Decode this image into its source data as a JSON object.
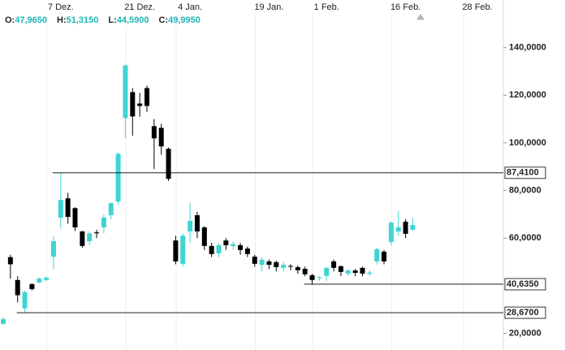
{
  "chart_data": {
    "type": "candlestick",
    "readout": [
      {
        "label": "O:",
        "value": "47,9650"
      },
      {
        "label": "H:",
        "value": "51,3150"
      },
      {
        "label": "L:",
        "value": "44,5900"
      },
      {
        "label": "C:",
        "value": "49,9950"
      }
    ],
    "categories": [
      null,
      null,
      null,
      null,
      null,
      null,
      null,
      null,
      "7 Dez.",
      null,
      null,
      null,
      null,
      null,
      null,
      null,
      null,
      null,
      null,
      "21 Dez.",
      null,
      null,
      null,
      null,
      null,
      null,
      "4 Jan.",
      null,
      null,
      null,
      null,
      null,
      null,
      null,
      null,
      null,
      null,
      "19 Jan.",
      null,
      null,
      null,
      null,
      null,
      null,
      null,
      "1 Feb.",
      null,
      null,
      null,
      null,
      null,
      null,
      null,
      null,
      null,
      null,
      "16 Feb.",
      null,
      null,
      null,
      null,
      null,
      null,
      null,
      null,
      null,
      "28 Feb.",
      null
    ],
    "open": [
      24,
      52,
      42.4,
      30.5,
      40.7,
      41.4,
      42.4,
      52.2,
      68.6,
      76.7,
      72.6,
      62.8,
      58.7,
      62.4,
      64.5,
      69.6,
      75.4,
      110.4,
      121.3,
      116.5,
      123,
      107,
      106.3,
      97.5,
      59,
      49.2,
      62.8,
      69.6,
      64.5,
      56.7,
      53.6,
      59,
      56.6,
      57,
      55.6,
      52.2,
      48.8,
      50.2,
      49.9,
      47.5,
      48.3,
      47.8,
      47.1,
      44.4,
      43.2,
      44.1,
      50.2,
      48.2,
      45.1,
      46.4,
      47.5,
      45,
      50.2,
      54.3,
      58.4,
      62.8,
      66.9,
      63.5,
      null,
      null,
      null,
      null,
      null,
      null,
      null,
      null,
      null,
      null
    ],
    "high": [
      27,
      53,
      44,
      38,
      41,
      43.5,
      44,
      61,
      87.41,
      79,
      73,
      63,
      63,
      63.5,
      70,
      75,
      96,
      133,
      123,
      121,
      124,
      110,
      108,
      98,
      61,
      62,
      74.7,
      71,
      65,
      58,
      58,
      60,
      58.5,
      58,
      56.5,
      53,
      52,
      51,
      50.5,
      50,
      49,
      48.5,
      48,
      45,
      44,
      48,
      51,
      48.5,
      47,
      47,
      48,
      46.5,
      56,
      55,
      67,
      71.5,
      68,
      68.5,
      null,
      null,
      null,
      null,
      null,
      null,
      null,
      null,
      null,
      null
    ],
    "low": [
      23.5,
      43,
      33,
      28.67,
      38,
      41,
      42,
      47,
      64,
      66,
      63,
      56,
      57,
      60,
      62,
      68,
      74,
      102,
      103,
      111,
      113,
      89,
      95,
      84,
      49,
      48,
      58,
      60,
      55,
      52,
      52,
      55,
      55,
      53,
      52,
      48,
      46,
      47,
      46,
      46,
      46.5,
      45,
      44,
      40.635,
      42,
      42,
      46,
      44,
      44,
      44,
      44,
      44,
      49,
      49,
      57,
      61,
      60,
      63,
      null,
      null,
      null,
      null,
      null,
      null,
      null,
      null,
      null,
      null
    ],
    "close": [
      26,
      49,
      36,
      37.3,
      38.6,
      43,
      43.4,
      58.7,
      76,
      68.9,
      64.5,
      56.7,
      62,
      62,
      68.6,
      74.7,
      95.4,
      132.5,
      111.1,
      115.5,
      115.5,
      101.9,
      98.5,
      84.9,
      50.2,
      61,
      67.2,
      62.8,
      56.7,
      53.3,
      57,
      57,
      57.5,
      55,
      53.3,
      49.2,
      50.9,
      48.8,
      47.8,
      48.8,
      48,
      46.5,
      44.8,
      42.4,
      43.6,
      47.5,
      47.5,
      45.8,
      46.4,
      45.4,
      45.1,
      45.5,
      55.3,
      50.2,
      66.5,
      64.5,
      61.8,
      65.5,
      null,
      null,
      null,
      null,
      null,
      null,
      null,
      null,
      null,
      null
    ],
    "up_color": "#3fd4d4",
    "down_color": "#000000",
    "levels": [
      {
        "value": 87.41,
        "label": "87,4100"
      },
      {
        "value": 40.635,
        "label": "40,6350"
      },
      {
        "value": 28.67,
        "label": "28,6700"
      }
    ],
    "ylim": [
      13,
      160
    ],
    "yticks": [
      {
        "value": 20,
        "label": "20,0000"
      },
      {
        "value": 60,
        "label": "60,0000"
      },
      {
        "value": 80,
        "label": "80,0000"
      },
      {
        "value": 100,
        "label": "100,0000"
      },
      {
        "value": 120,
        "label": "120,0000"
      },
      {
        "value": 140,
        "label": "140,0000"
      }
    ]
  }
}
